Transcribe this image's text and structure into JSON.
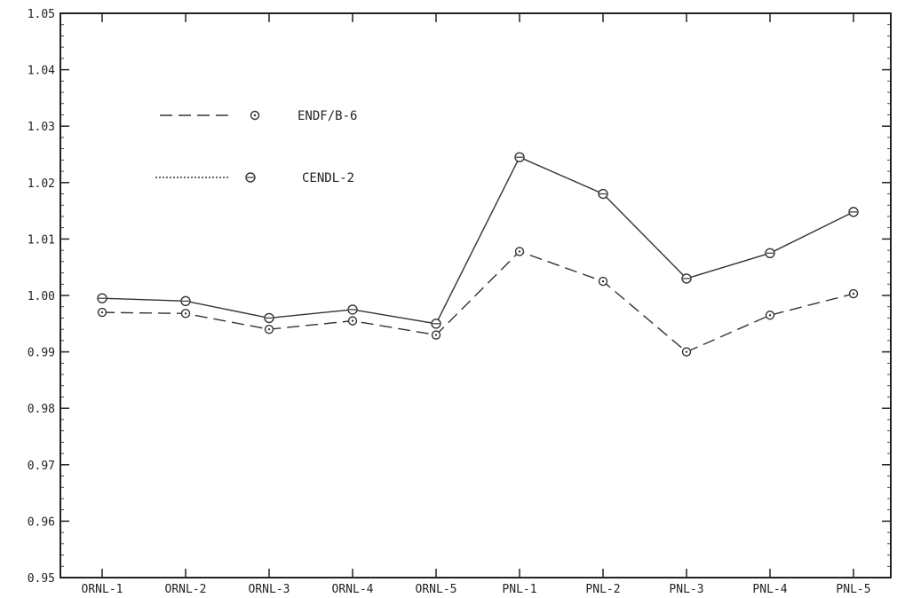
{
  "chart_data": {
    "type": "line",
    "title": "",
    "xlabel": "",
    "ylabel": "",
    "categories": [
      "ORNL-1",
      "ORNL-2",
      "ORNL-3",
      "ORNL-4",
      "ORNL-5",
      "PNL-1",
      "PNL-2",
      "PNL-3",
      "PNL-4",
      "PNL-5"
    ],
    "ylim": [
      0.95,
      1.05
    ],
    "yticks": [
      1.05,
      1.04,
      1.03,
      1.02,
      1.01,
      1.0,
      0.99,
      0.98,
      0.97,
      0.96,
      0.95
    ],
    "ytick_labels": [
      "1.05",
      "1.04",
      "1.03",
      "1.02",
      "1.01",
      "1.00",
      "0.99",
      "0.98",
      "0.97",
      "0.96",
      "0.95"
    ],
    "grid": false,
    "legend_position": "upper-left",
    "series": [
      {
        "name": "ENDF/B-6",
        "line_style": "dashed",
        "marker": "circle-dot",
        "values": [
          0.997,
          0.9968,
          0.994,
          0.9955,
          0.993,
          1.0078,
          1.0025,
          0.99,
          0.9965,
          1.0003
        ]
      },
      {
        "name": "CENDL-2",
        "line_style": "solid",
        "marker": "circle-cross",
        "values": [
          0.9995,
          0.999,
          0.996,
          0.9975,
          0.995,
          1.0245,
          1.018,
          1.003,
          1.0075,
          1.0148
        ]
      }
    ],
    "colors": {
      "line": "#333333",
      "axis": "#222222",
      "background": "#ffffff"
    }
  }
}
